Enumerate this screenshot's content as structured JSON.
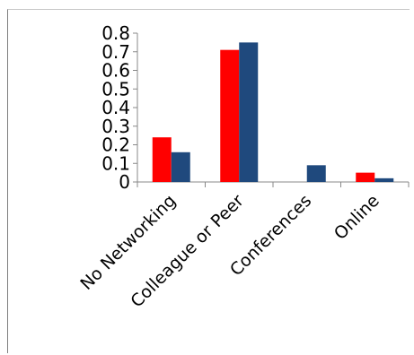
{
  "chart_data": {
    "type": "bar",
    "categories": [
      "No Networking",
      "Colleague or Peer",
      "Conferences",
      "Online"
    ],
    "series": [
      {
        "values": [
          0.24,
          0.71,
          0.0,
          0.05
        ],
        "color": "#ff0000"
      },
      {
        "values": [
          0.16,
          0.75,
          0.09,
          0.02
        ],
        "color": "#1f497d"
      }
    ],
    "yticks": [
      "0",
      "0.1",
      "0.2",
      "0.3",
      "0.4",
      "0.5",
      "0.6",
      "0.7",
      "0.8"
    ],
    "ylim": [
      0,
      0.8
    ],
    "grid": false,
    "legend": "none",
    "title": "",
    "xlabel": "",
    "ylabel": ""
  }
}
